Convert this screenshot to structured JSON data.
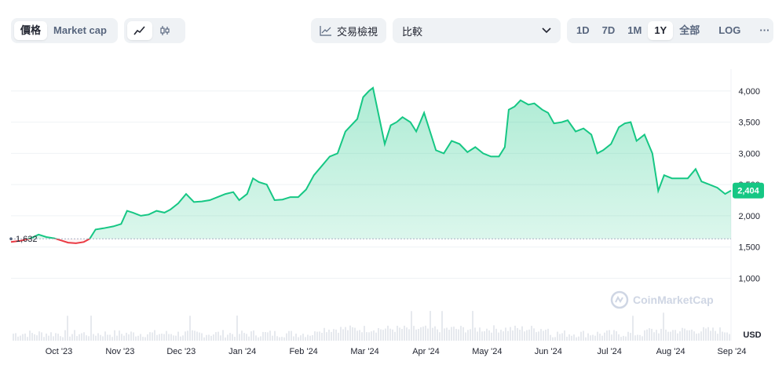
{
  "toolbar": {
    "view_options": [
      "價格",
      "Market cap"
    ],
    "view_active": "價格",
    "chart_style_icons": [
      "line-chart-icon",
      "candlestick-icon"
    ],
    "tradingview_label": "交易檢視",
    "compare_label": "比較",
    "ranges": [
      "1D",
      "7D",
      "1M",
      "1Y",
      "全部"
    ],
    "range_active": "1Y",
    "log_label": "LOG",
    "more_label": "···"
  },
  "watermark": "CoinMarketCap",
  "colors": {
    "up": "#16c784",
    "down": "#ea3943",
    "badge": "#16c784"
  },
  "chart_data": {
    "type": "area",
    "currency": "USD",
    "start_price": 1632,
    "start_label": "1,632",
    "current_price": 2404,
    "current_label": "2,404",
    "ylim": [
      0,
      4350
    ],
    "y_ticks": [
      {
        "value": 1000,
        "label": "1,000"
      },
      {
        "value": 1500,
        "label": "1,500"
      },
      {
        "value": 2000,
        "label": "2,000"
      },
      {
        "value": 2500,
        "label": "2,500"
      },
      {
        "value": 3000,
        "label": "3,000"
      },
      {
        "value": 3500,
        "label": "3,500"
      },
      {
        "value": 4000,
        "label": "4,000"
      }
    ],
    "x_ticks": [
      "Oct '23",
      "Nov '23",
      "Dec '23",
      "Jan '24",
      "Feb '24",
      "Mar '24",
      "Apr '24",
      "May '24",
      "Jun '24",
      "Jul '24",
      "Aug '24",
      "Sep '24"
    ],
    "x_start": "2023-09-11",
    "x_end": "2024-09-11",
    "series": [
      {
        "points": [
          [
            "2023-09-11",
            1580
          ],
          [
            "2023-09-16",
            1600
          ],
          [
            "2023-09-21",
            1640
          ],
          [
            "2023-09-25",
            1700
          ],
          [
            "2023-09-29",
            1660
          ],
          [
            "2023-10-03",
            1640
          ],
          [
            "2023-10-07",
            1600
          ],
          [
            "2023-10-10",
            1570
          ],
          [
            "2023-10-14",
            1560
          ],
          [
            "2023-10-18",
            1580
          ],
          [
            "2023-10-21",
            1630
          ],
          [
            "2023-10-24",
            1780
          ],
          [
            "2023-10-28",
            1800
          ],
          [
            "2023-11-02",
            1830
          ],
          [
            "2023-11-06",
            1870
          ],
          [
            "2023-11-09",
            2080
          ],
          [
            "2023-11-12",
            2050
          ],
          [
            "2023-11-16",
            2000
          ],
          [
            "2023-11-20",
            2020
          ],
          [
            "2023-11-24",
            2080
          ],
          [
            "2023-11-28",
            2050
          ],
          [
            "2023-12-01",
            2100
          ],
          [
            "2023-12-05",
            2200
          ],
          [
            "2023-12-09",
            2350
          ],
          [
            "2023-12-13",
            2220
          ],
          [
            "2023-12-17",
            2230
          ],
          [
            "2023-12-21",
            2250
          ],
          [
            "2023-12-25",
            2300
          ],
          [
            "2023-12-29",
            2350
          ],
          [
            "2024-01-02",
            2380
          ],
          [
            "2024-01-05",
            2250
          ],
          [
            "2024-01-09",
            2350
          ],
          [
            "2024-01-12",
            2600
          ],
          [
            "2024-01-15",
            2540
          ],
          [
            "2024-01-19",
            2500
          ],
          [
            "2024-01-23",
            2250
          ],
          [
            "2024-01-27",
            2260
          ],
          [
            "2024-01-31",
            2300
          ],
          [
            "2024-02-04",
            2300
          ],
          [
            "2024-02-08",
            2420
          ],
          [
            "2024-02-12",
            2650
          ],
          [
            "2024-02-16",
            2800
          ],
          [
            "2024-02-20",
            2950
          ],
          [
            "2024-02-24",
            3000
          ],
          [
            "2024-02-28",
            3350
          ],
          [
            "2024-03-02",
            3450
          ],
          [
            "2024-03-05",
            3550
          ],
          [
            "2024-03-08",
            3900
          ],
          [
            "2024-03-11",
            4000
          ],
          [
            "2024-03-13",
            4050
          ],
          [
            "2024-03-16",
            3600
          ],
          [
            "2024-03-19",
            3150
          ],
          [
            "2024-03-22",
            3450
          ],
          [
            "2024-03-25",
            3500
          ],
          [
            "2024-03-28",
            3580
          ],
          [
            "2024-04-01",
            3500
          ],
          [
            "2024-04-04",
            3350
          ],
          [
            "2024-04-08",
            3650
          ],
          [
            "2024-04-12",
            3250
          ],
          [
            "2024-04-14",
            3050
          ],
          [
            "2024-04-18",
            3000
          ],
          [
            "2024-04-22",
            3200
          ],
          [
            "2024-04-26",
            3150
          ],
          [
            "2024-04-30",
            3020
          ],
          [
            "2024-05-04",
            3100
          ],
          [
            "2024-05-08",
            3000
          ],
          [
            "2024-05-12",
            2950
          ],
          [
            "2024-05-16",
            2950
          ],
          [
            "2024-05-19",
            3100
          ],
          [
            "2024-05-21",
            3700
          ],
          [
            "2024-05-24",
            3750
          ],
          [
            "2024-05-27",
            3850
          ],
          [
            "2024-05-31",
            3780
          ],
          [
            "2024-06-03",
            3800
          ],
          [
            "2024-06-07",
            3700
          ],
          [
            "2024-06-10",
            3650
          ],
          [
            "2024-06-13",
            3480
          ],
          [
            "2024-06-17",
            3500
          ],
          [
            "2024-06-20",
            3530
          ],
          [
            "2024-06-24",
            3350
          ],
          [
            "2024-06-28",
            3400
          ],
          [
            "2024-07-02",
            3300
          ],
          [
            "2024-07-05",
            3000
          ],
          [
            "2024-07-08",
            3050
          ],
          [
            "2024-07-12",
            3150
          ],
          [
            "2024-07-16",
            3420
          ],
          [
            "2024-07-19",
            3480
          ],
          [
            "2024-07-22",
            3500
          ],
          [
            "2024-07-25",
            3200
          ],
          [
            "2024-07-29",
            3300
          ],
          [
            "2024-08-02",
            3000
          ],
          [
            "2024-08-05",
            2400
          ],
          [
            "2024-08-08",
            2650
          ],
          [
            "2024-08-12",
            2600
          ],
          [
            "2024-08-16",
            2600
          ],
          [
            "2024-08-20",
            2600
          ],
          [
            "2024-08-24",
            2750
          ],
          [
            "2024-08-27",
            2550
          ],
          [
            "2024-08-31",
            2500
          ],
          [
            "2024-09-04",
            2450
          ],
          [
            "2024-09-08",
            2350
          ],
          [
            "2024-09-11",
            2404
          ]
        ]
      }
    ]
  }
}
